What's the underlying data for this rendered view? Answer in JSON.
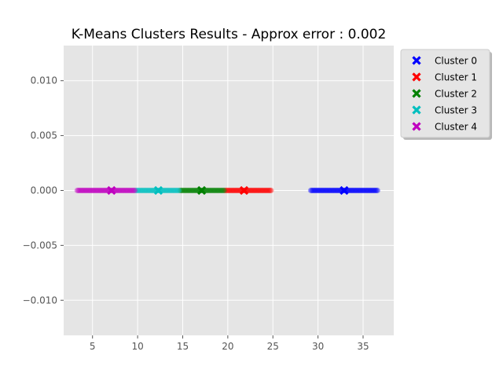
{
  "chart_data": {
    "type": "scatter",
    "title": "K-Means Clusters Results - Approx error : 0.002",
    "xlabel": "",
    "ylabel": "",
    "xlim": [
      1.8,
      38.4
    ],
    "ylim": [
      -0.0132,
      0.0132
    ],
    "x_ticks": [
      "5",
      "10",
      "15",
      "20",
      "25",
      "30",
      "35"
    ],
    "x_tick_values": [
      5,
      10,
      15,
      20,
      25,
      30,
      35
    ],
    "y_ticks": [
      "0.010",
      "0.005",
      "0.000",
      "−0.005",
      "−0.010"
    ],
    "y_tick_values": [
      0.01,
      0.005,
      0.0,
      -0.005,
      -0.01
    ],
    "grid": true,
    "legend_position": "outside top-right",
    "series": [
      {
        "name": "Cluster 0",
        "color": "#0000ff",
        "x_range": [
          29.2,
          36.6
        ],
        "centroid": [
          32.9,
          0.0
        ]
      },
      {
        "name": "Cluster 1",
        "color": "#ff0000",
        "x_range": [
          19.7,
          24.8
        ],
        "centroid": [
          21.8,
          0.0
        ]
      },
      {
        "name": "Cluster 2",
        "color": "#008000",
        "x_range": [
          14.7,
          19.6
        ],
        "centroid": [
          17.1,
          0.0
        ]
      },
      {
        "name": "Cluster 3",
        "color": "#00bfbf",
        "x_range": [
          9.8,
          14.6
        ],
        "centroid": [
          12.3,
          0.0
        ]
      },
      {
        "name": "Cluster 4",
        "color": "#bf00bf",
        "x_range": [
          3.3,
          9.7
        ],
        "centroid": [
          7.1,
          0.0
        ]
      }
    ]
  }
}
